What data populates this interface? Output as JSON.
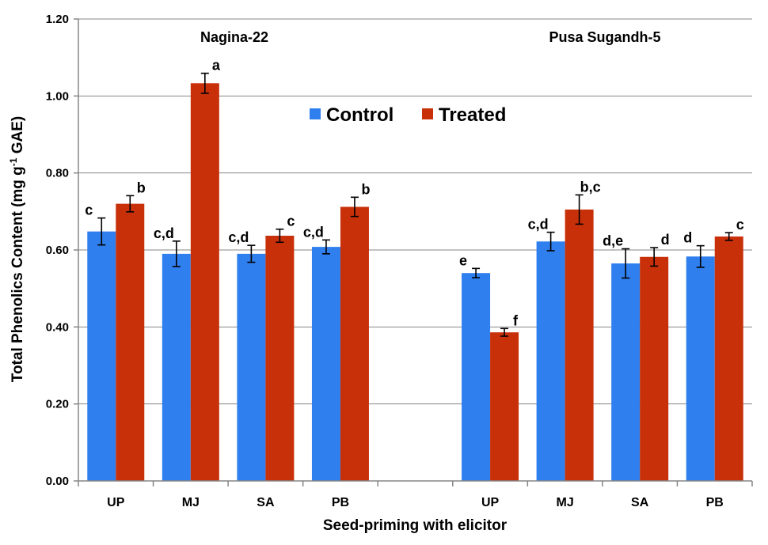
{
  "chart_data": {
    "type": "bar",
    "ylabel": "Total Phenolics Content (mg g",
    "ylabel_sup": "-1",
    "ylabel_end": " GAE)",
    "xlabel": "Seed-priming with elicitor",
    "ylim": [
      0,
      1.2
    ],
    "yticks": [
      "0.00",
      "0.20",
      "0.40",
      "0.60",
      "0.80",
      "1.00",
      "1.20"
    ],
    "grid": true,
    "legend": {
      "position": "top-center",
      "entries": [
        "Control",
        "Treated"
      ]
    },
    "colors": {
      "control": "#2f7fef",
      "treated": "#c8300a",
      "axis": "#868686"
    },
    "groups": [
      {
        "name": "Nagina-22",
        "categories": [
          "UP",
          "MJ",
          "SA",
          "PB"
        ],
        "series": [
          {
            "name": "Control",
            "values": [
              0.648,
              0.59,
              0.59,
              0.608
            ],
            "errors": [
              0.035,
              0.033,
              0.022,
              0.018
            ],
            "letters": [
              "c",
              "c,d",
              "c,d",
              "c,d"
            ]
          },
          {
            "name": "Treated",
            "values": [
              0.72,
              1.033,
              0.637,
              0.712
            ],
            "errors": [
              0.021,
              0.026,
              0.017,
              0.025
            ],
            "letters": [
              "b",
              "a",
              "c",
              "b"
            ]
          }
        ]
      },
      {
        "name": "Pusa Sugandh-5",
        "categories": [
          "UP",
          "MJ",
          "SA",
          "PB"
        ],
        "series": [
          {
            "name": "Control",
            "values": [
              0.54,
              0.622,
              0.565,
              0.583
            ],
            "errors": [
              0.012,
              0.024,
              0.038,
              0.028
            ],
            "letters": [
              "e",
              "c,d",
              "d,e",
              "d"
            ]
          },
          {
            "name": "Treated",
            "values": [
              0.386,
              0.705,
              0.582,
              0.635
            ],
            "errors": [
              0.01,
              0.038,
              0.024,
              0.01
            ],
            "letters": [
              "f",
              "b,c",
              "d",
              "c"
            ]
          }
        ]
      }
    ]
  }
}
